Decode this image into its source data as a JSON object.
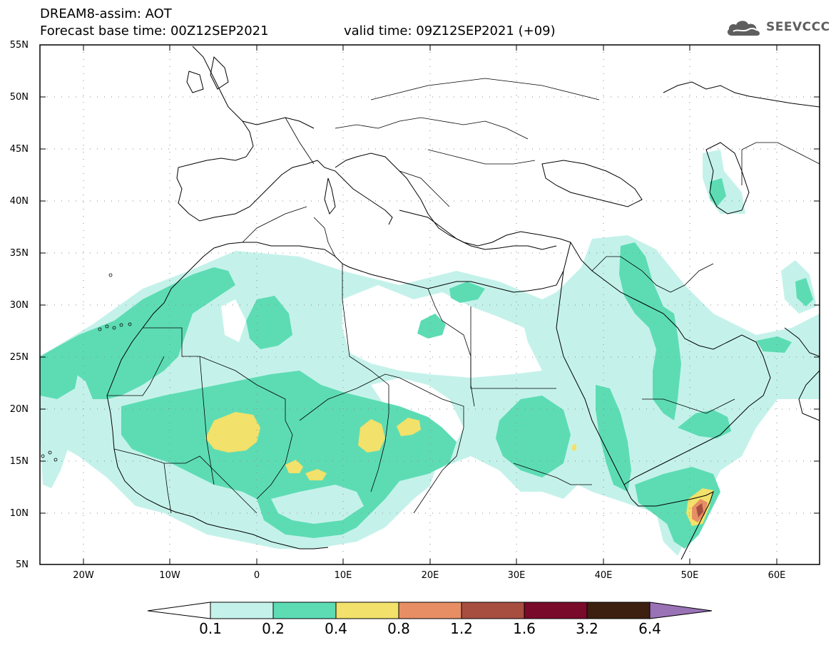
{
  "title": {
    "line1": "DREAM8-assim: AOT",
    "line2": "Forecast base time: 00Z12SEP2021",
    "valid": "valid time: 09Z12SEP2021 (+09)"
  },
  "logo": {
    "text": "SEEVCCC",
    "icon": "cloud-logo-icon"
  },
  "map": {
    "lat_range": [
      5,
      55
    ],
    "lon_range": [
      -25,
      65
    ],
    "lat_labels": [
      "55N",
      "50N",
      "45N",
      "40N",
      "35N",
      "30N",
      "25N",
      "20N",
      "15N",
      "10N",
      "5N"
    ],
    "lon_labels": [
      "20W",
      "10W",
      "0",
      "10E",
      "20E",
      "30E",
      "40E",
      "50E",
      "60E"
    ],
    "grid": "dotted"
  },
  "colorbar": {
    "labels": [
      "0.1",
      "0.2",
      "0.4",
      "0.8",
      "1.2",
      "1.6",
      "3.2",
      "6.4"
    ],
    "colors": [
      "#c4f2ea",
      "#5ddcb4",
      "#f2e16a",
      "#e88e64",
      "#a84e40",
      "#7a0a2a",
      "#3d2010",
      "#9a72b6"
    ]
  }
}
